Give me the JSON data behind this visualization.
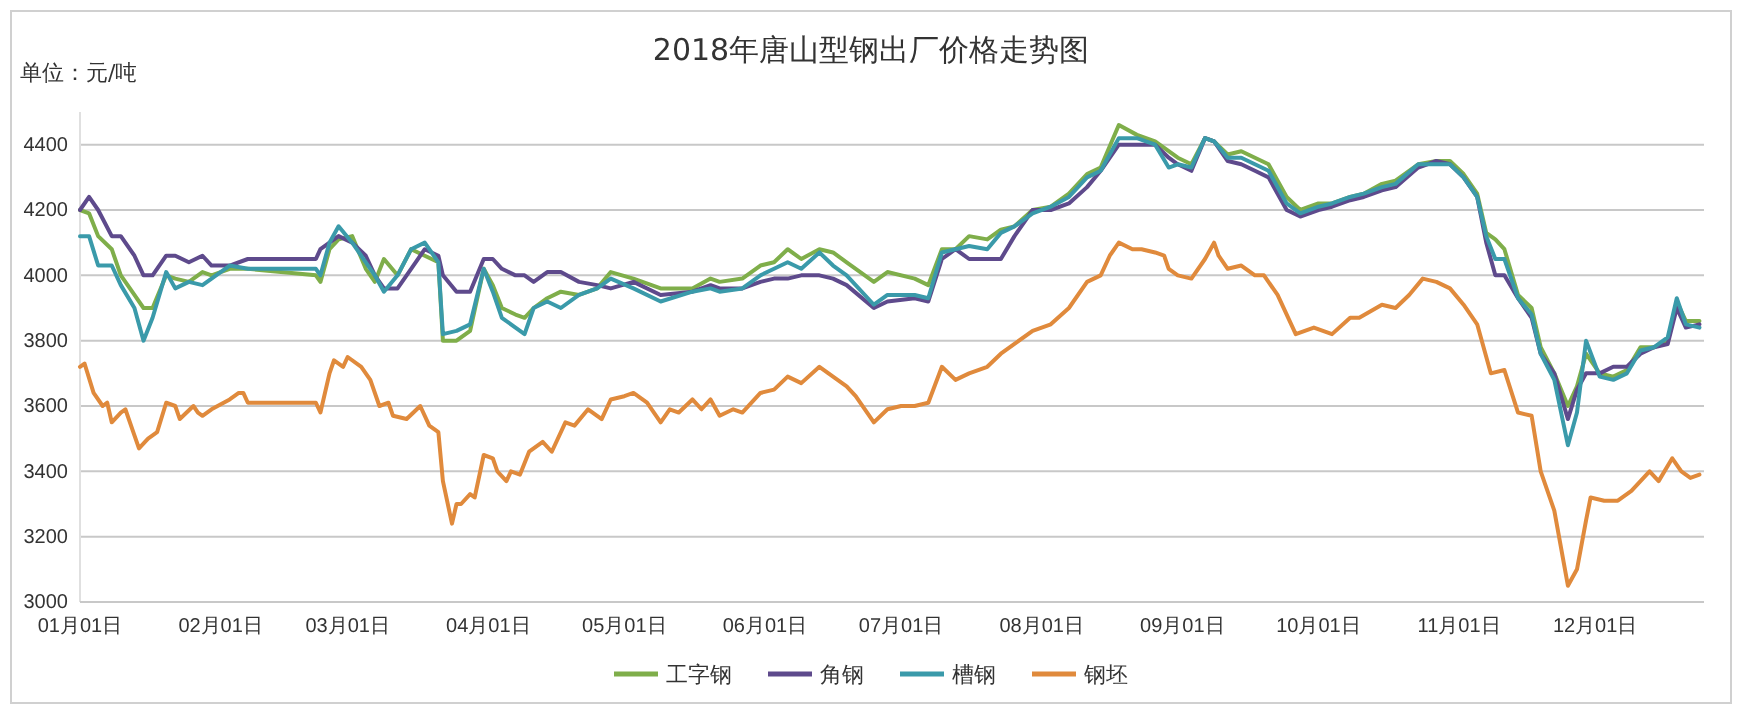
{
  "chart_data": {
    "type": "line",
    "title": "2018年唐山型钢出厂价格走势图",
    "ylabel": "单位：元/吨",
    "x": [
      "--01-01",
      "--01-03",
      "--01-05",
      "--01-08",
      "--01-10",
      "--01-13",
      "--01-15",
      "--01-17",
      "--01-20",
      "--01-22",
      "--01-25",
      "--01-28",
      "--01-30",
      "--02-03",
      "--02-07",
      "--02-22",
      "--02-23",
      "--02-25",
      "--02-27",
      "--03-02",
      "--03-05",
      "--03-07",
      "--03-09",
      "--03-12",
      "--03-15",
      "--03-18",
      "--03-21",
      "--03-22",
      "--03-25",
      "--03-28",
      "--03-31",
      "--04-02",
      "--04-04",
      "--04-07",
      "--04-09",
      "--04-11",
      "--04-14",
      "--04-17",
      "--04-21",
      "--04-25",
      "--04-28",
      "--05-03",
      "--05-09",
      "--05-16",
      "--05-20",
      "--05-22",
      "--05-27",
      "--05-31",
      "--06-03",
      "--06-06",
      "--06-09",
      "--06-13",
      "--06-16",
      "--06-19",
      "--06-25",
      "--06-28",
      "--07-04",
      "--07-07",
      "--07-10",
      "--07-13",
      "--07-16",
      "--07-20",
      "--07-23",
      "--07-26",
      "--07-30",
      "--08-03",
      "--08-07",
      "--08-11",
      "--08-14",
      "--08-18",
      "--08-22",
      "--08-26",
      "--08-29",
      "--08-31",
      "--09-03",
      "--09-06",
      "--09-08",
      "--09-11",
      "--09-14",
      "--09-17",
      "--09-20",
      "--09-24",
      "--09-27",
      "--10-01",
      "--10-04",
      "--10-08",
      "--10-11",
      "--10-15",
      "--10-18",
      "--10-23",
      "--10-27",
      "--10-30",
      "--11-02",
      "--11-05",
      "--11-07",
      "--11-09",
      "--11-11",
      "--11-14",
      "--11-17",
      "--11-19",
      "--11-22",
      "--11-25",
      "--11-27",
      "--11-29",
      "--12-02",
      "--12-05",
      "--12-08",
      "--12-11",
      "--12-14",
      "--12-17",
      "--12-19",
      "--12-21",
      "--12-24"
    ],
    "series": [
      {
        "name": "工字钢",
        "color": "#7fae4a",
        "values": [
          4200,
          4190,
          4120,
          4080,
          4000,
          3940,
          3900,
          3900,
          4000,
          3990,
          3980,
          4010,
          4000,
          4020,
          4020,
          4000,
          3980,
          4080,
          4110,
          4120,
          4020,
          3980,
          4050,
          4000,
          4080,
          4060,
          4040,
          3800,
          3800,
          3830,
          4020,
          3970,
          3900,
          3880,
          3870,
          3900,
          3930,
          3950,
          3940,
          3960,
          4010,
          3990,
          3960,
          3960,
          3990,
          3980,
          3990,
          4030,
          4040,
          4080,
          4050,
          4080,
          4070,
          4040,
          3980,
          4010,
          3990,
          3970,
          4080,
          4080,
          4120,
          4110,
          4140,
          4150,
          4200,
          4210,
          4250,
          4310,
          4330,
          4460,
          4430,
          4410,
          4380,
          4360,
          4340,
          4420,
          4410,
          4370,
          4380,
          4360,
          4340,
          4240,
          4200,
          4220,
          4220,
          4240,
          4250,
          4280,
          4290,
          4340,
          4350,
          4350,
          4310,
          4250,
          4130,
          4110,
          4080,
          3940,
          3900,
          3780,
          3700,
          3600,
          3660,
          3760,
          3700,
          3690,
          3710,
          3780,
          3780,
          3800,
          3920,
          3860,
          3860
        ]
      },
      {
        "name": "角钢",
        "color": "#5e4a8c",
        "values": [
          4200,
          4240,
          4200,
          4120,
          4120,
          4060,
          4000,
          4000,
          4060,
          4060,
          4040,
          4060,
          4030,
          4030,
          4050,
          4050,
          4080,
          4100,
          4120,
          4100,
          4060,
          4000,
          3960,
          3960,
          4020,
          4080,
          4060,
          4000,
          3950,
          3950,
          4050,
          4050,
          4020,
          4000,
          4000,
          3980,
          4010,
          4010,
          3980,
          3970,
          3960,
          3980,
          3940,
          3950,
          3970,
          3960,
          3960,
          3980,
          3990,
          3990,
          4000,
          4000,
          3990,
          3970,
          3900,
          3920,
          3930,
          3920,
          4050,
          4080,
          4050,
          4050,
          4050,
          4120,
          4200,
          4200,
          4220,
          4270,
          4320,
          4400,
          4400,
          4400,
          4360,
          4340,
          4320,
          4420,
          4410,
          4350,
          4340,
          4320,
          4300,
          4200,
          4180,
          4200,
          4210,
          4230,
          4240,
          4260,
          4270,
          4330,
          4350,
          4340,
          4300,
          4240,
          4100,
          4000,
          4000,
          3930,
          3870,
          3760,
          3700,
          3560,
          3650,
          3700,
          3700,
          3720,
          3720,
          3760,
          3780,
          3790,
          3900,
          3840,
          3850
        ]
      },
      {
        "name": "槽钢",
        "color": "#3a9aaa",
        "values": [
          4120,
          4120,
          4030,
          4030,
          3970,
          3900,
          3800,
          3870,
          4010,
          3960,
          3980,
          3970,
          3990,
          4030,
          4020,
          4020,
          4000,
          4100,
          4150,
          4100,
          4040,
          4000,
          3950,
          4000,
          4080,
          4100,
          4040,
          3820,
          3830,
          3850,
          4020,
          3950,
          3870,
          3840,
          3820,
          3900,
          3920,
          3900,
          3940,
          3960,
          3990,
          3960,
          3920,
          3950,
          3960,
          3950,
          3960,
          4000,
          4020,
          4040,
          4020,
          4070,
          4030,
          4000,
          3910,
          3940,
          3940,
          3930,
          4070,
          4080,
          4090,
          4080,
          4130,
          4150,
          4190,
          4210,
          4240,
          4300,
          4320,
          4420,
          4420,
          4400,
          4330,
          4340,
          4330,
          4420,
          4410,
          4360,
          4360,
          4340,
          4320,
          4220,
          4190,
          4210,
          4220,
          4240,
          4250,
          4270,
          4280,
          4340,
          4340,
          4340,
          4300,
          4240,
          4120,
          4050,
          4050,
          3930,
          3880,
          3760,
          3680,
          3480,
          3580,
          3800,
          3690,
          3680,
          3700,
          3770,
          3780,
          3810,
          3930,
          3850,
          3840
        ]
      },
      {
        "name": "钢坯",
        "color": "#e08a3c",
        "x": [
          "--01-01",
          "--01-02",
          "--01-04",
          "--01-06",
          "--01-07",
          "--01-08",
          "--01-10",
          "--01-11",
          "--01-13",
          "--01-14",
          "--01-16",
          "--01-18",
          "--01-20",
          "--01-22",
          "--01-23",
          "--01-26",
          "--01-27",
          "--01-28",
          "--01-30",
          "--02-03",
          "--02-05",
          "--02-06",
          "--02-07",
          "--02-22",
          "--02-23",
          "--02-25",
          "--02-26",
          "--02-28",
          "--03-01",
          "--03-04",
          "--03-06",
          "--03-08",
          "--03-10",
          "--03-11",
          "--03-14",
          "--03-17",
          "--03-19",
          "--03-21",
          "--03-22",
          "--03-24",
          "--03-25",
          "--03-26",
          "--03-28",
          "--03-29",
          "--03-31",
          "--04-02",
          "--04-03",
          "--04-05",
          "--04-06",
          "--04-08",
          "--04-10",
          "--04-11",
          "--04-13",
          "--04-15",
          "--04-18",
          "--04-20",
          "--04-23",
          "--04-26",
          "--04-28",
          "--05-01",
          "--05-03",
          "--05-06",
          "--05-09",
          "--05-11",
          "--05-13",
          "--05-16",
          "--05-18",
          "--05-20",
          "--05-22",
          "--05-25",
          "--05-27",
          "--05-31",
          "--06-03",
          "--06-06",
          "--06-09",
          "--06-13",
          "--06-16",
          "--06-19",
          "--06-21",
          "--06-25",
          "--06-28",
          "--07-01",
          "--07-04",
          "--07-07",
          "--07-10",
          "--07-13",
          "--07-16",
          "--07-20",
          "--07-23",
          "--07-26",
          "--07-30",
          "--08-03",
          "--08-07",
          "--08-11",
          "--08-14",
          "--08-16",
          "--08-18",
          "--08-21",
          "--08-23",
          "--08-26",
          "--08-28",
          "--08-29",
          "--08-31",
          "--09-03",
          "--09-06",
          "--09-08",
          "--09-09",
          "--09-11",
          "--09-14",
          "--09-17",
          "--09-19",
          "--09-22",
          "--09-26",
          "--09-30",
          "--10-04",
          "--10-08",
          "--10-10",
          "--10-15",
          "--10-18",
          "--10-21",
          "--10-24",
          "--10-27",
          "--10-30",
          "--11-02",
          "--11-05",
          "--11-08",
          "--11-11",
          "--11-14",
          "--11-17",
          "--11-19",
          "--11-22",
          "--11-25",
          "--11-27",
          "--11-29",
          "--11-30",
          "--12-03",
          "--12-06",
          "--12-09",
          "--12-13",
          "--12-15",
          "--12-18",
          "--12-20",
          "--12-22",
          "--12-24"
        ],
        "values": [
          3720,
          3730,
          3640,
          3600,
          3610,
          3550,
          3580,
          3590,
          3510,
          3470,
          3500,
          3520,
          3610,
          3600,
          3560,
          3600,
          3580,
          3570,
          3590,
          3620,
          3640,
          3640,
          3610,
          3610,
          3580,
          3700,
          3740,
          3720,
          3750,
          3720,
          3680,
          3600,
          3610,
          3570,
          3560,
          3600,
          3540,
          3520,
          3370,
          3240,
          3300,
          3300,
          3330,
          3320,
          3450,
          3440,
          3400,
          3370,
          3400,
          3390,
          3460,
          3470,
          3490,
          3460,
          3550,
          3540,
          3590,
          3560,
          3620,
          3630,
          3640,
          3610,
          3550,
          3590,
          3580,
          3620,
          3590,
          3620,
          3570,
          3590,
          3580,
          3640,
          3650,
          3690,
          3670,
          3720,
          3690,
          3660,
          3630,
          3550,
          3590,
          3600,
          3600,
          3610,
          3720,
          3680,
          3700,
          3720,
          3760,
          3790,
          3830,
          3850,
          3900,
          3980,
          4000,
          4060,
          4100,
          4080,
          4080,
          4070,
          4060,
          4020,
          4000,
          3990,
          4050,
          4100,
          4060,
          4020,
          4030,
          4000,
          4000,
          3940,
          3820,
          3840,
          3820,
          3870,
          3870,
          3910,
          3900,
          3940,
          3990,
          3980,
          3960,
          3910,
          3850,
          3700,
          3710,
          3580,
          3570,
          3400,
          3280,
          3050,
          3100,
          3250,
          3320,
          3310,
          3310,
          3340,
          3400,
          3370,
          3440,
          3400,
          3380,
          3390
        ]
      }
    ],
    "xlim": [
      "--01-01",
      "--12-25"
    ],
    "xticks": [
      {
        "value": "--01-01",
        "label": "01月01日"
      },
      {
        "value": "--02-01",
        "label": "02月01日"
      },
      {
        "value": "--03-01",
        "label": "03月01日"
      },
      {
        "value": "--04-01",
        "label": "04月01日"
      },
      {
        "value": "--05-01",
        "label": "05月01日"
      },
      {
        "value": "--06-01",
        "label": "06月01日"
      },
      {
        "value": "--07-01",
        "label": "07月01日"
      },
      {
        "value": "--08-01",
        "label": "08月01日"
      },
      {
        "value": "--09-01",
        "label": "09月01日"
      },
      {
        "value": "--10-01",
        "label": "10月01日"
      },
      {
        "value": "--11-01",
        "label": "11月01日"
      },
      {
        "value": "--12-01",
        "label": "12月01日"
      }
    ],
    "ylim": [
      3000,
      4500
    ],
    "yticks": [
      3000,
      3200,
      3400,
      3600,
      3800,
      4000,
      4200,
      4400
    ],
    "grid": "y",
    "legend": "bottom",
    "marker": "none",
    "line_style": "solid"
  }
}
